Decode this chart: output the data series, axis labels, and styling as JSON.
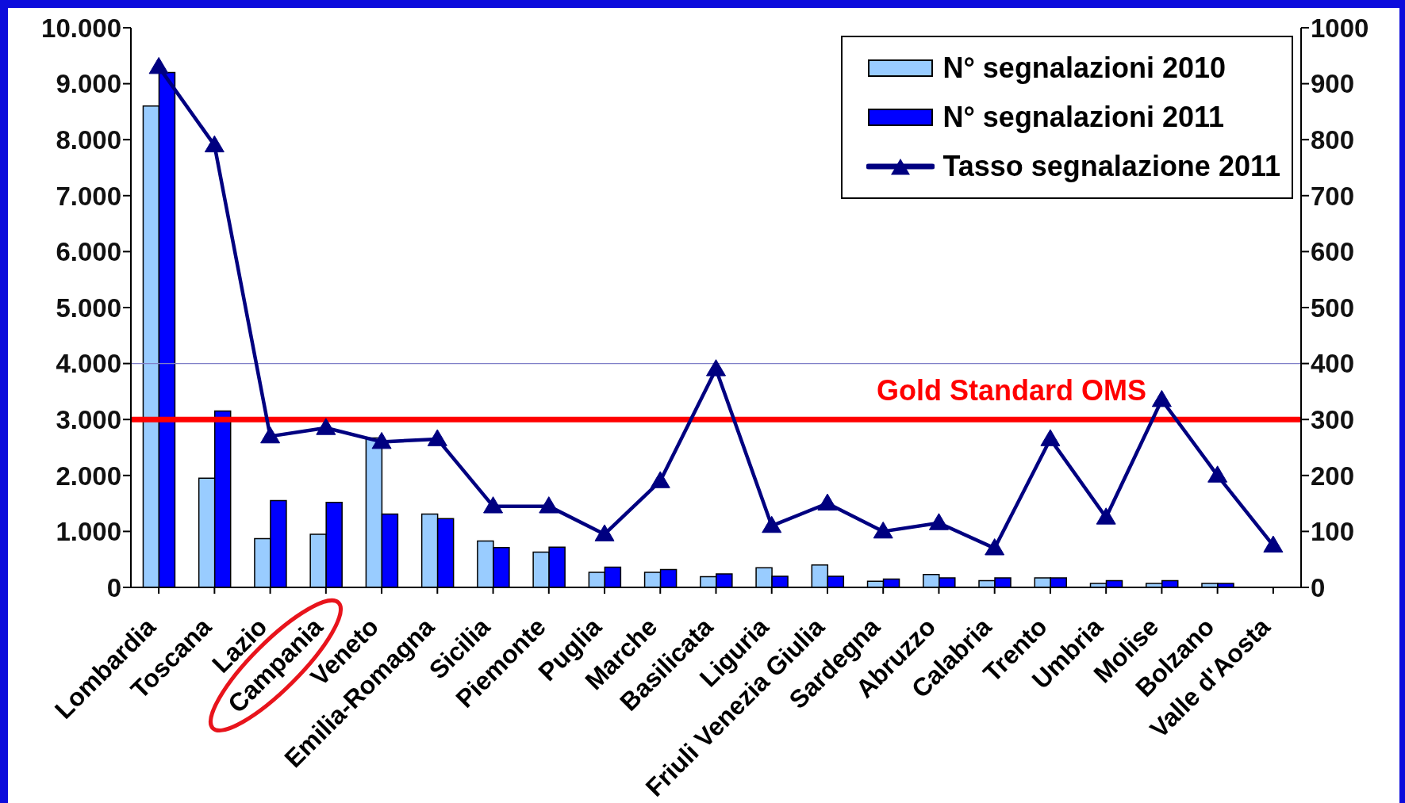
{
  "chart_data": {
    "type": "bar",
    "categories": [
      "Lombardia",
      "Toscana",
      "Lazio",
      "Campania",
      "Veneto",
      "Emilia-Romagna",
      "Sicilia",
      "Piemonte",
      "Puglia",
      "Marche",
      "Basilicata",
      "Liguria",
      "Friuli Venezia Giulia",
      "Sardegna",
      "Abruzzo",
      "Calabria",
      "Trento",
      "Umbria",
      "Molise",
      "Bolzano",
      "Valle d'Aosta"
    ],
    "series": [
      {
        "name": "N° segnalazioni 2010",
        "color": "#99ccff",
        "values": [
          8600,
          1950,
          870,
          950,
          2670,
          1310,
          830,
          630,
          270,
          270,
          190,
          350,
          400,
          110,
          230,
          120,
          170,
          70,
          70,
          70,
          null
        ]
      },
      {
        "name": "N° segnalazioni 2011",
        "color": "#0000ff",
        "values": [
          9200,
          3150,
          1550,
          1520,
          1310,
          1230,
          710,
          720,
          360,
          320,
          240,
          200,
          200,
          150,
          170,
          170,
          170,
          120,
          120,
          70,
          null
        ]
      },
      {
        "name": "Tasso segnalazione 2011",
        "type": "line",
        "axis": "y2",
        "color": "#000080",
        "marker": "triangle",
        "line_style": "solid",
        "values": [
          930,
          790,
          270,
          285,
          260,
          265,
          145,
          145,
          95,
          190,
          390,
          110,
          150,
          100,
          115,
          70,
          265,
          125,
          335,
          200,
          75
        ]
      }
    ],
    "ylim": [
      0,
      10000
    ],
    "yticks": [
      0,
      {
        "value": 1000,
        "label": "1.000"
      },
      {
        "value": 2000,
        "label": "2.000"
      },
      {
        "value": 3000,
        "label": "3.000"
      },
      {
        "value": 4000,
        "label": "4.000"
      },
      {
        "value": 5000,
        "label": "5.000"
      },
      {
        "value": 6000,
        "label": "6.000"
      },
      {
        "value": 7000,
        "label": "7.000"
      },
      {
        "value": 8000,
        "label": "8.000"
      },
      {
        "value": 9000,
        "label": "9.000"
      },
      {
        "value": 10000,
        "label": "10.000"
      }
    ],
    "y2lim": [
      0,
      1000
    ],
    "y2ticks": [
      0,
      100,
      200,
      300,
      400,
      500,
      600,
      700,
      800,
      900,
      1000
    ],
    "ref_lines": [
      {
        "axis": "y2",
        "value": 300,
        "label": "Gold Standard OMS",
        "color": "#ff0000"
      },
      {
        "axis": "y",
        "value": 4000,
        "color": "#8080c8"
      }
    ],
    "legend": "top right"
  }
}
